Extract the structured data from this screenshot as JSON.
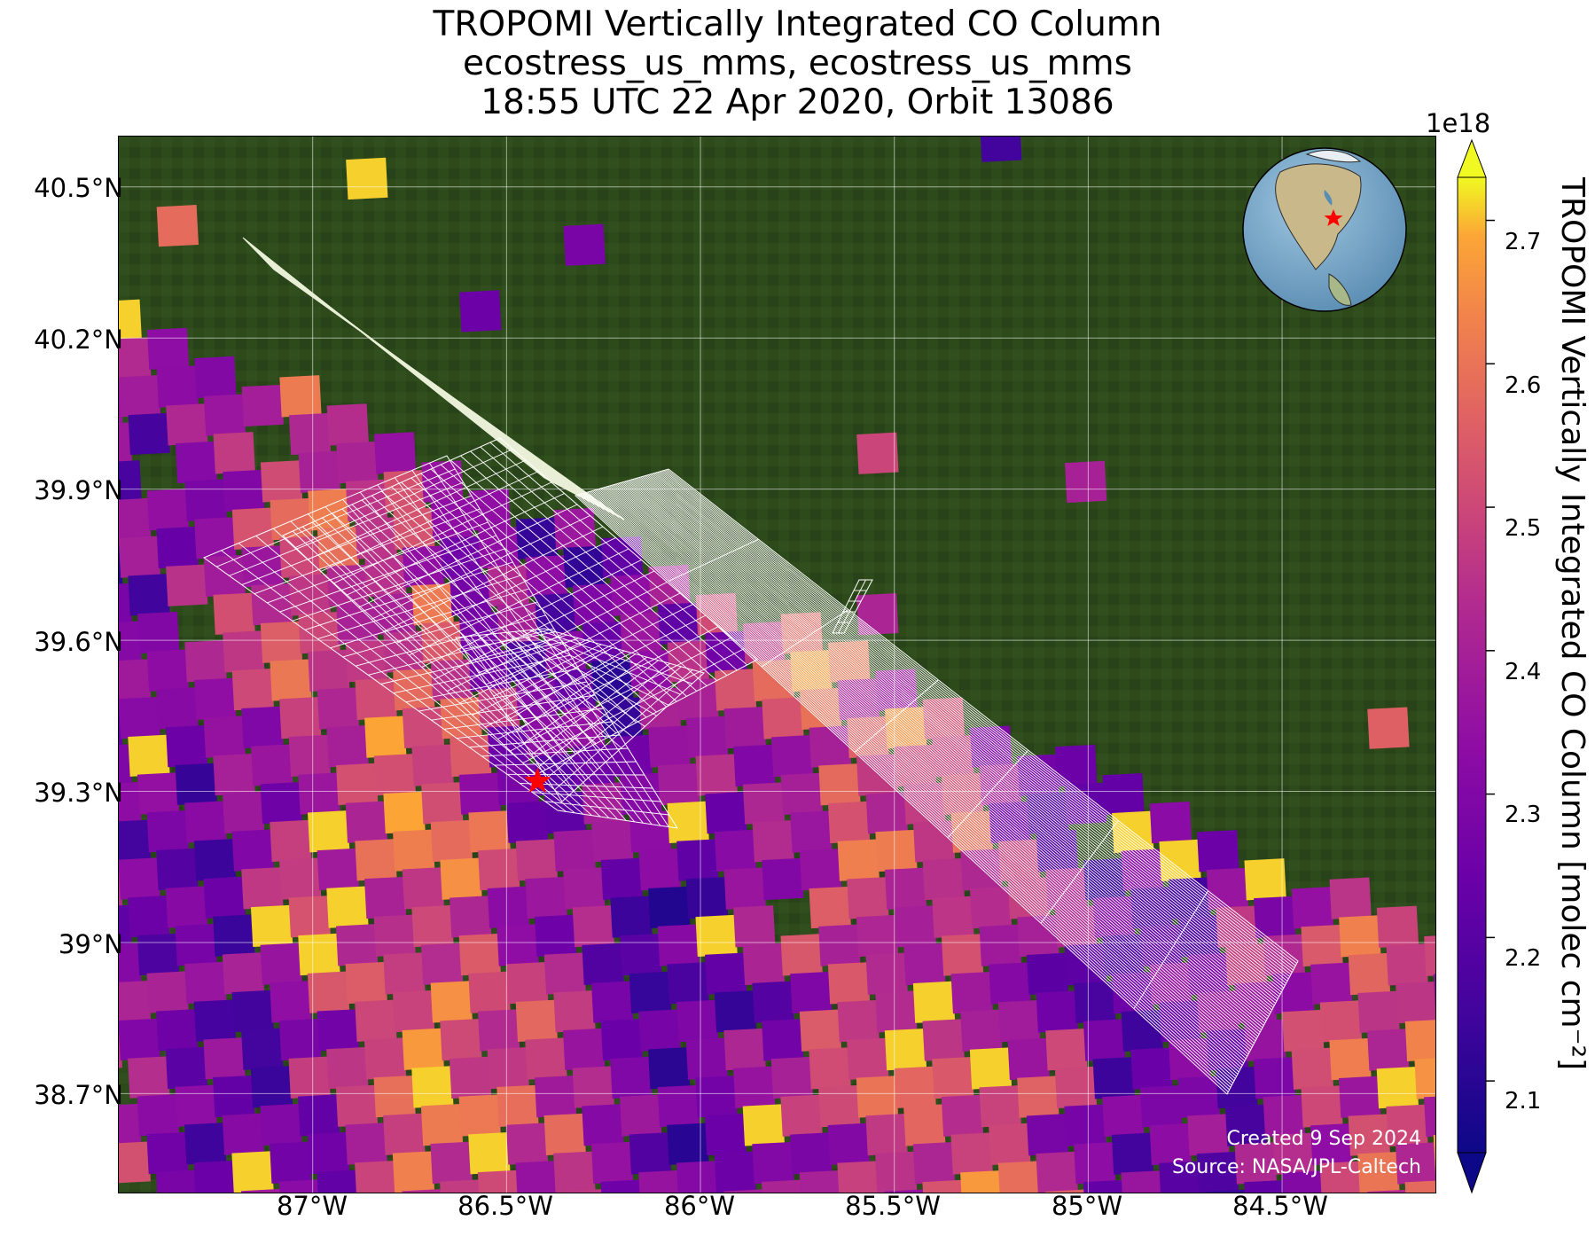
{
  "title": {
    "line1": "TROPOMI Vertically Integrated CO Column",
    "line2": "ecostress_us_mms, ecostress_us_mms",
    "line3": "18:55 UTC 22 Apr 2020, Orbit 13086"
  },
  "map": {
    "lon_range": [
      -87.5,
      -84.1
    ],
    "lat_range": [
      38.5,
      40.6
    ],
    "lat_ticks": [
      {
        "value": 40.5,
        "label": "40.5°N"
      },
      {
        "value": 40.2,
        "label": "40.2°N"
      },
      {
        "value": 39.9,
        "label": "39.9°N"
      },
      {
        "value": 39.6,
        "label": "39.6°N"
      },
      {
        "value": 39.3,
        "label": "39.3°N"
      },
      {
        "value": 39.0,
        "label": "39°N"
      },
      {
        "value": 38.7,
        "label": "38.7°N"
      }
    ],
    "lon_ticks": [
      {
        "value": -87.0,
        "label": "87°W"
      },
      {
        "value": -86.5,
        "label": "86.5°W"
      },
      {
        "value": -86.0,
        "label": "86°W"
      },
      {
        "value": -85.5,
        "label": "85.5°W"
      },
      {
        "value": -85.0,
        "label": "85°W"
      },
      {
        "value": -84.5,
        "label": "84.5°W"
      }
    ],
    "grid": true,
    "background": "satellite imagery (green farmland)",
    "marker": {
      "lon": -86.42,
      "lat": 39.32,
      "symbol": "star",
      "color": "#ff0000"
    },
    "inset": "globe centered on North America with red star",
    "credit": {
      "line1": "Created 9 Sep 2024",
      "line2": "Source: NASA/JPL-Caltech"
    }
  },
  "colorbar": {
    "label": "TROPOMI Vertically Integrated CO Column [molec cm⁻²]",
    "exponent": "1e18",
    "range": [
      2.05,
      2.73
    ],
    "colormap": "plasma",
    "ticks": [
      "2.1",
      "2.2",
      "2.3",
      "2.4",
      "2.5",
      "2.6",
      "2.7"
    ],
    "tick_values": [
      2.1,
      2.2,
      2.3,
      2.4,
      2.5,
      2.6,
      2.7
    ]
  },
  "chart_data": {
    "type": "heatmap",
    "variable": "TROPOMI Vertically Integrated CO Column",
    "units": "molec cm-2 (x1e18)",
    "value_range": [
      2.05,
      2.73
    ],
    "note_values_visible_as_colors_only": true
  }
}
